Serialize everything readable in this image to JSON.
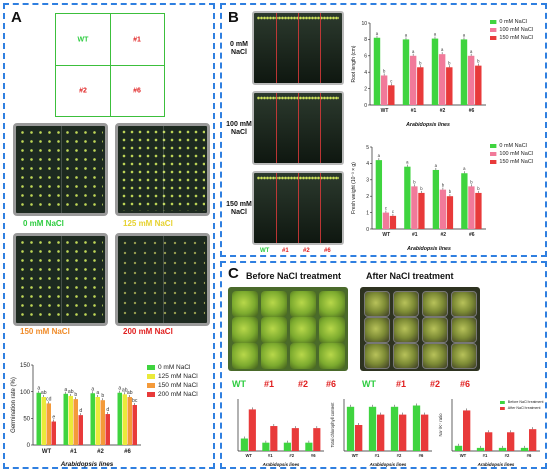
{
  "panel_a": {
    "letter": "A",
    "diagram_labels": [
      "WT",
      "#1",
      "#2",
      "#6"
    ],
    "dish_captions": [
      "0 mM NaCl",
      "125 mM NaCl",
      "150 mM NaCl",
      "200 mM NaCl"
    ],
    "caption_colors": [
      "#2ecc40",
      "#e6d230",
      "#f08c2a",
      "#e02020"
    ]
  },
  "panel_b": {
    "letter": "B",
    "plate_labels": [
      "0 mM\nNaCl",
      "100 mM\nNaCl",
      "150 mM\nNaCl"
    ],
    "lane_labels": [
      "WT",
      "#1",
      "#2",
      "#6"
    ],
    "lane_colors": [
      "#2ecc40",
      "#e02020",
      "#e02020",
      "#e02020"
    ]
  },
  "panel_c": {
    "letter": "C",
    "before_title": "Before NaCl treatment",
    "after_title": "After NaCl treatment",
    "line_labels": [
      "WT",
      "#1",
      "#2",
      "#6",
      "WT",
      "#1",
      "#2",
      "#6"
    ],
    "line_colors": [
      "#2ecc40",
      "#e02020",
      "#e02020",
      "#e02020",
      "#2ecc40",
      "#e02020",
      "#e02020",
      "#e02020"
    ]
  },
  "chart_data": [
    {
      "id": "germination",
      "type": "bar",
      "categories": [
        "WT",
        "#1",
        "#2",
        "#6"
      ],
      "xlabel": "Arabidopsis lines",
      "ylabel": "Germination rate (%)",
      "ylim": [
        0,
        150
      ],
      "yticks": [
        0,
        50,
        100,
        150
      ],
      "legend_position": "right",
      "series": [
        {
          "name": "0 mM NaCl",
          "color": "#3fd43f",
          "values": [
            98,
            96,
            97,
            98
          ]
        },
        {
          "name": "125 mM NaCl",
          "color": "#eaea3a",
          "values": [
            90,
            92,
            90,
            95
          ]
        },
        {
          "name": "150 mM NaCl",
          "color": "#f49a3a",
          "values": [
            78,
            86,
            84,
            90
          ]
        },
        {
          "name": "200 mM NaCl",
          "color": "#e83a3a",
          "values": [
            44,
            56,
            58,
            75
          ]
        }
      ],
      "letters": [
        [
          "a",
          "a",
          "a",
          "a"
        ],
        [
          "ab",
          "ab",
          "a",
          "ab"
        ],
        [
          "cd",
          "b",
          "b",
          "ab"
        ],
        [
          "e",
          "d",
          "d",
          "bc"
        ]
      ]
    },
    {
      "id": "root_length",
      "type": "bar",
      "categories": [
        "WT",
        "#1",
        "#2",
        "#6"
      ],
      "xlabel": "Arabidopsis lines",
      "ylabel": "Root length (cm)",
      "ylim": [
        0,
        10
      ],
      "yticks": [
        0,
        2,
        4,
        6,
        8,
        10
      ],
      "legend_position": "top-right",
      "series": [
        {
          "name": "0 mM NaCl",
          "color": "#3fd43f",
          "values": [
            8.2,
            8.0,
            8.1,
            8.0
          ]
        },
        {
          "name": "100 mM NaCl",
          "color": "#f17a9a",
          "values": [
            3.6,
            6.0,
            6.2,
            6.0
          ]
        },
        {
          "name": "150 mM NaCl",
          "color": "#e83a3a",
          "values": [
            2.4,
            4.6,
            4.6,
            4.8
          ]
        }
      ],
      "letters": [
        [
          "a",
          "a",
          "a",
          "a"
        ],
        [
          "b",
          "a",
          "a",
          "a"
        ],
        [
          "c",
          "b",
          "b",
          "b"
        ]
      ]
    },
    {
      "id": "fresh_weight",
      "type": "bar",
      "categories": [
        "WT",
        "#1",
        "#2",
        "#6"
      ],
      "xlabel": "Arabidopsis lines",
      "ylabel": "Fresh weight (10⁻³ × g)",
      "ylim": [
        0,
        5
      ],
      "yticks": [
        0,
        1,
        2,
        3,
        4,
        5
      ],
      "legend_position": "top-right",
      "series": [
        {
          "name": "0 mM NaCl",
          "color": "#3fd43f",
          "values": [
            4.2,
            3.8,
            3.6,
            3.4
          ]
        },
        {
          "name": "100 mM NaCl",
          "color": "#f17a9a",
          "values": [
            1.0,
            2.6,
            2.4,
            2.6
          ]
        },
        {
          "name": "150 mM NaCl",
          "color": "#e83a3a",
          "values": [
            0.8,
            2.2,
            2.0,
            2.2
          ]
        }
      ],
      "letters": [
        [
          "a",
          "a",
          "a",
          "a"
        ],
        [
          "c",
          "b",
          "b",
          "b"
        ],
        [
          "c",
          "b",
          "b",
          "b"
        ]
      ]
    },
    {
      "id": "c_chart_1",
      "type": "bar",
      "categories": [
        "WT",
        "#1",
        "#2",
        "#6"
      ],
      "xlabel": "Arabidopsis lines",
      "ylim": [
        0,
        50
      ],
      "series": [
        {
          "name": "Before NaCl treatment",
          "color": "#3fd43f",
          "values": [
            12,
            8,
            8,
            8
          ]
        },
        {
          "name": "After NaCl treatment",
          "color": "#e83a3a",
          "values": [
            40,
            24,
            22,
            22
          ]
        }
      ]
    },
    {
      "id": "c_chart_2",
      "type": "bar",
      "categories": [
        "WT",
        "#1",
        "#2",
        "#6"
      ],
      "xlabel": "Arabidopsis lines",
      "ylabel": "Total chlorophyll content",
      "ylim": [
        0,
        0.4
      ],
      "series": [
        {
          "name": "Before NaCl treatment",
          "color": "#3fd43f",
          "values": [
            0.34,
            0.34,
            0.34,
            0.35
          ]
        },
        {
          "name": "After NaCl treatment",
          "color": "#e83a3a",
          "values": [
            0.2,
            0.28,
            0.28,
            0.28
          ]
        }
      ]
    },
    {
      "id": "c_chart_3",
      "type": "bar",
      "categories": [
        "WT",
        "#1",
        "#2",
        "#6"
      ],
      "xlabel": "Arabidopsis lines",
      "ylabel": "Na⁺/K⁺ ratio",
      "ylim": [
        0,
        1.0
      ],
      "legend_position": "top-right",
      "series": [
        {
          "name": "Before NaCl treatment",
          "color": "#3fd43f",
          "values": [
            0.1,
            0.06,
            0.06,
            0.06
          ]
        },
        {
          "name": "After NaCl treatment",
          "color": "#e83a3a",
          "values": [
            0.78,
            0.36,
            0.36,
            0.42
          ]
        }
      ]
    }
  ]
}
